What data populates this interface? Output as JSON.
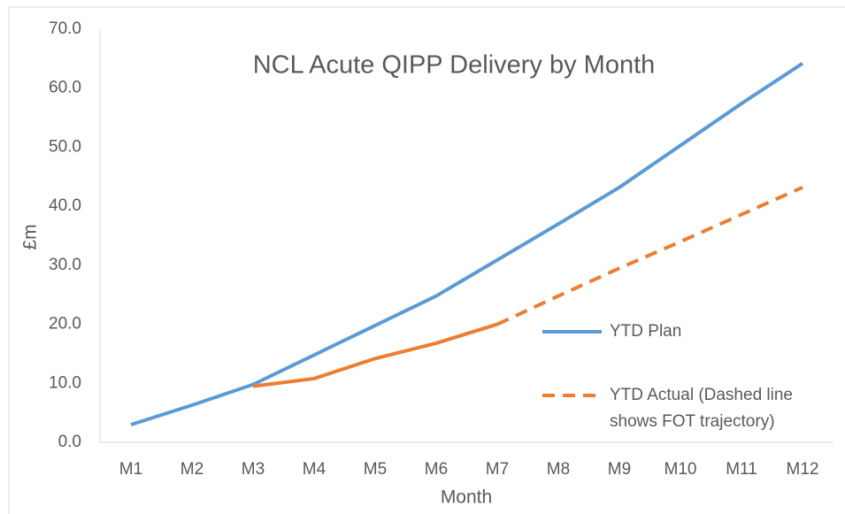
{
  "chart_data": {
    "type": "line",
    "title": "NCL Acute QIPP Delivery by Month",
    "x_label": "Month",
    "y_label": "£m",
    "categories": [
      "M1",
      "M2",
      "M3",
      "M4",
      "M5",
      "M6",
      "M7",
      "M8",
      "M9",
      "M10",
      "M11",
      "M12"
    ],
    "series": [
      {
        "name": "YTD Plan",
        "color": "#5b9bd5",
        "values": [
          3.0,
          6.3,
          9.8,
          14.8,
          19.8,
          24.8,
          30.9,
          37.0,
          43.2,
          50.3,
          57.4,
          64.2
        ]
      },
      {
        "name": "YTD Actual (Dashed line shows FOT trajectory)",
        "color": "#ed7d31",
        "dashed_from_category": "M7",
        "values": [
          null,
          null,
          9.5,
          10.8,
          14.2,
          16.8,
          20.0,
          24.8,
          29.5,
          34.0,
          38.6,
          43.2
        ]
      }
    ],
    "ylim": [
      0,
      70
    ],
    "yticks": [
      {
        "value": 0,
        "label": "0.0"
      },
      {
        "value": 10,
        "label": "10.0"
      },
      {
        "value": 20,
        "label": "20.0"
      },
      {
        "value": 30,
        "label": "30.0"
      },
      {
        "value": 40,
        "label": "40.0"
      },
      {
        "value": 50,
        "label": "50.0"
      },
      {
        "value": 60,
        "label": "60.0"
      },
      {
        "value": 70,
        "label": "70.0"
      }
    ],
    "grid": false
  }
}
